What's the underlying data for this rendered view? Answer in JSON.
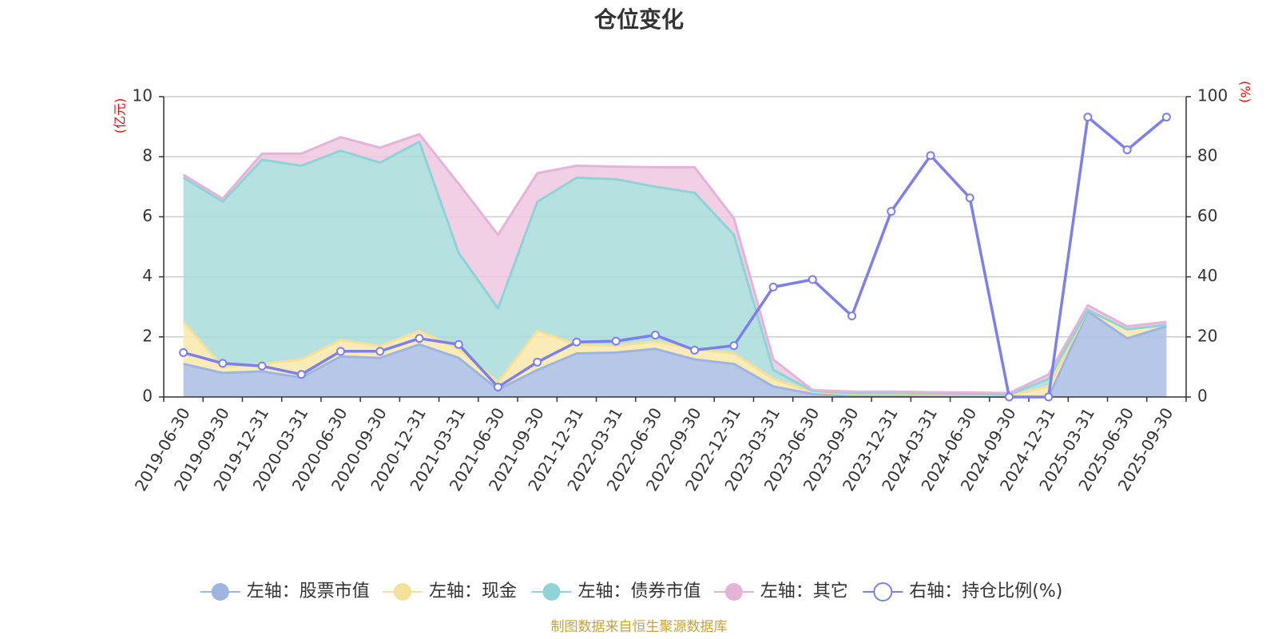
{
  "chart_data": {
    "type": "area",
    "title": "仓位变化",
    "source": "制图数据来自恒生聚源数据库",
    "left_unit": "(亿元)",
    "right_unit": "(%)",
    "y_left": {
      "min": 0,
      "max": 10,
      "ticks": [
        "0",
        "2",
        "4",
        "6",
        "8",
        "10"
      ]
    },
    "y_right": {
      "min": 0,
      "max": 100,
      "ticks": [
        "0",
        "20",
        "40",
        "60",
        "80",
        "100"
      ]
    },
    "categories": [
      "2019-06-30",
      "2019-09-30",
      "2019-12-31",
      "2020-03-31",
      "2020-06-30",
      "2020-09-30",
      "2020-12-31",
      "2021-03-31",
      "2021-06-30",
      "2021-09-30",
      "2021-12-31",
      "2022-03-31",
      "2022-06-30",
      "2022-09-30",
      "2022-12-31",
      "2023-03-31",
      "2023-06-30",
      "2023-09-30",
      "2023-12-31",
      "2024-03-31",
      "2024-06-30",
      "2024-09-30",
      "2024-12-31",
      "2025-03-31",
      "2025-06-30",
      "2025-09-30"
    ],
    "grid": true,
    "legend_position": "bottom",
    "series": [
      {
        "name": "左轴：股票市值",
        "axis": "left",
        "kind": "stack",
        "color": "#a9bde3",
        "line": "#9db5e0",
        "values": [
          1.1,
          0.8,
          0.85,
          0.65,
          1.35,
          1.3,
          1.75,
          1.3,
          0.25,
          0.9,
          1.45,
          1.48,
          1.6,
          1.25,
          1.1,
          0.35,
          0.1,
          0.05,
          0.05,
          0.04,
          0.03,
          0.0,
          0.0,
          2.85,
          1.95,
          2.35
        ]
      },
      {
        "name": "左轴：现金",
        "axis": "left",
        "kind": "stack",
        "color": "#f9e7aa",
        "line": "#f5e099",
        "values": [
          1.4,
          0.2,
          0.25,
          0.6,
          0.55,
          0.4,
          0.45,
          0.3,
          0.25,
          1.3,
          0.3,
          0.22,
          0.25,
          0.35,
          0.35,
          0.25,
          0.07,
          0.05,
          0.05,
          0.04,
          0.04,
          0.05,
          0.35,
          0.05,
          0.3,
          0.05
        ]
      },
      {
        "name": "左轴：债券市值",
        "axis": "left",
        "kind": "stack",
        "color": "#a8dcdc",
        "line": "#8fd3d6",
        "values": [
          4.8,
          5.5,
          6.8,
          6.45,
          6.3,
          6.1,
          6.3,
          3.2,
          2.45,
          4.3,
          5.55,
          5.55,
          5.15,
          5.2,
          3.95,
          0.3,
          0.03,
          0.03,
          0.03,
          0.03,
          0.03,
          0.03,
          0.25,
          0.0,
          0.0,
          0.0
        ]
      },
      {
        "name": "左轴：其它",
        "axis": "left",
        "kind": "stack",
        "color": "#eec8e2",
        "line": "#e5b3d7",
        "values": [
          0.1,
          0.1,
          0.2,
          0.4,
          0.45,
          0.5,
          0.25,
          2.3,
          2.45,
          0.95,
          0.4,
          0.42,
          0.65,
          0.85,
          0.55,
          0.35,
          0.03,
          0.05,
          0.05,
          0.05,
          0.05,
          0.05,
          0.15,
          0.15,
          0.1,
          0.1
        ]
      },
      {
        "name": "右轴：持仓比例(%)",
        "axis": "right",
        "kind": "line",
        "color": "#7b7fef",
        "values": [
          14.8,
          11.2,
          10.3,
          7.5,
          15.2,
          15.2,
          19.5,
          17.5,
          3.3,
          11.6,
          18.3,
          18.6,
          20.6,
          15.6,
          17.1,
          36.6,
          39.1,
          27,
          61.8,
          80.4,
          66.3,
          0,
          0,
          93.2,
          82.3,
          93.2
        ]
      }
    ]
  }
}
